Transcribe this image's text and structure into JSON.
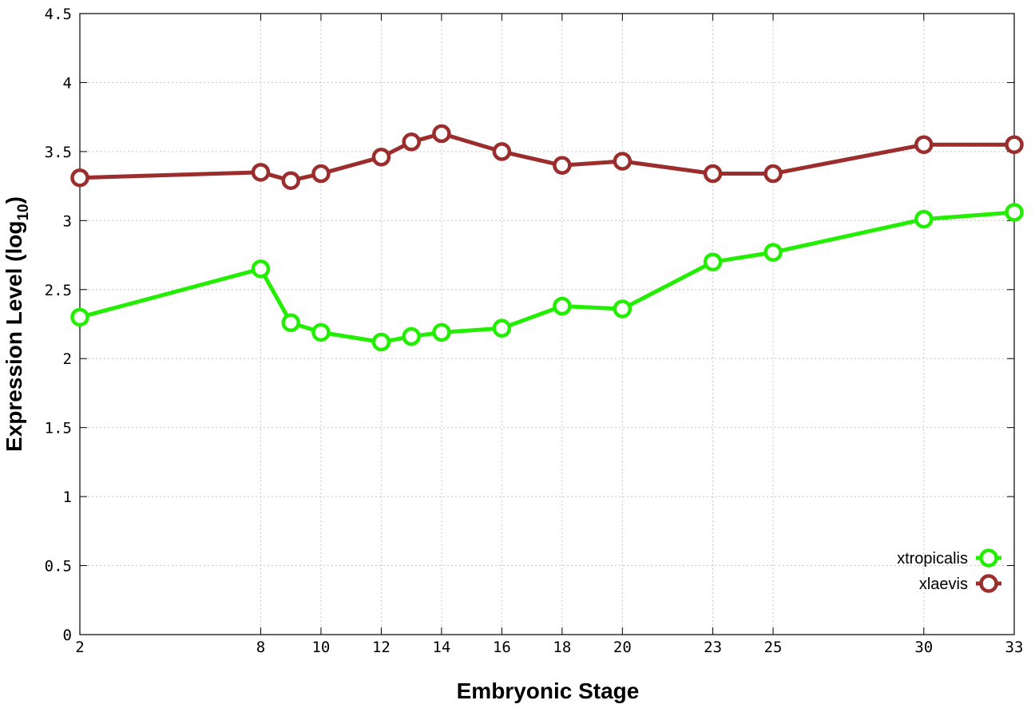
{
  "chart_data": {
    "type": "line",
    "xlabel": "Embryonic Stage",
    "ylabel_main": "Expression Level (log",
    "ylabel_sub": "10",
    "ylabel_close": ")",
    "x_ticks": [
      "2",
      "8",
      "10",
      "12",
      "14",
      "16",
      "18",
      "20",
      "23",
      "25",
      "30",
      "33"
    ],
    "x": [
      2,
      8,
      9,
      10,
      12,
      13,
      14,
      16,
      18,
      20,
      23,
      25,
      30,
      33
    ],
    "ylim": [
      0,
      4.5
    ],
    "y_ticks": [
      "0",
      "0.5",
      "1",
      "1.5",
      "2",
      "2.5",
      "3",
      "3.5",
      "4",
      "4.5"
    ],
    "grid": true,
    "legend_position": "bottom-right",
    "series": [
      {
        "name": "xtropicalis",
        "color": "#22ee00",
        "values": [
          2.3,
          2.65,
          2.26,
          2.19,
          2.12,
          2.16,
          2.19,
          2.22,
          2.38,
          2.36,
          2.7,
          2.77,
          3.01,
          3.06
        ]
      },
      {
        "name": "xlaevis",
        "color": "#9b2d2d",
        "values": [
          3.31,
          3.35,
          3.29,
          3.34,
          3.46,
          3.57,
          3.63,
          3.5,
          3.4,
          3.43,
          3.34,
          3.34,
          3.55,
          3.55
        ]
      }
    ]
  }
}
